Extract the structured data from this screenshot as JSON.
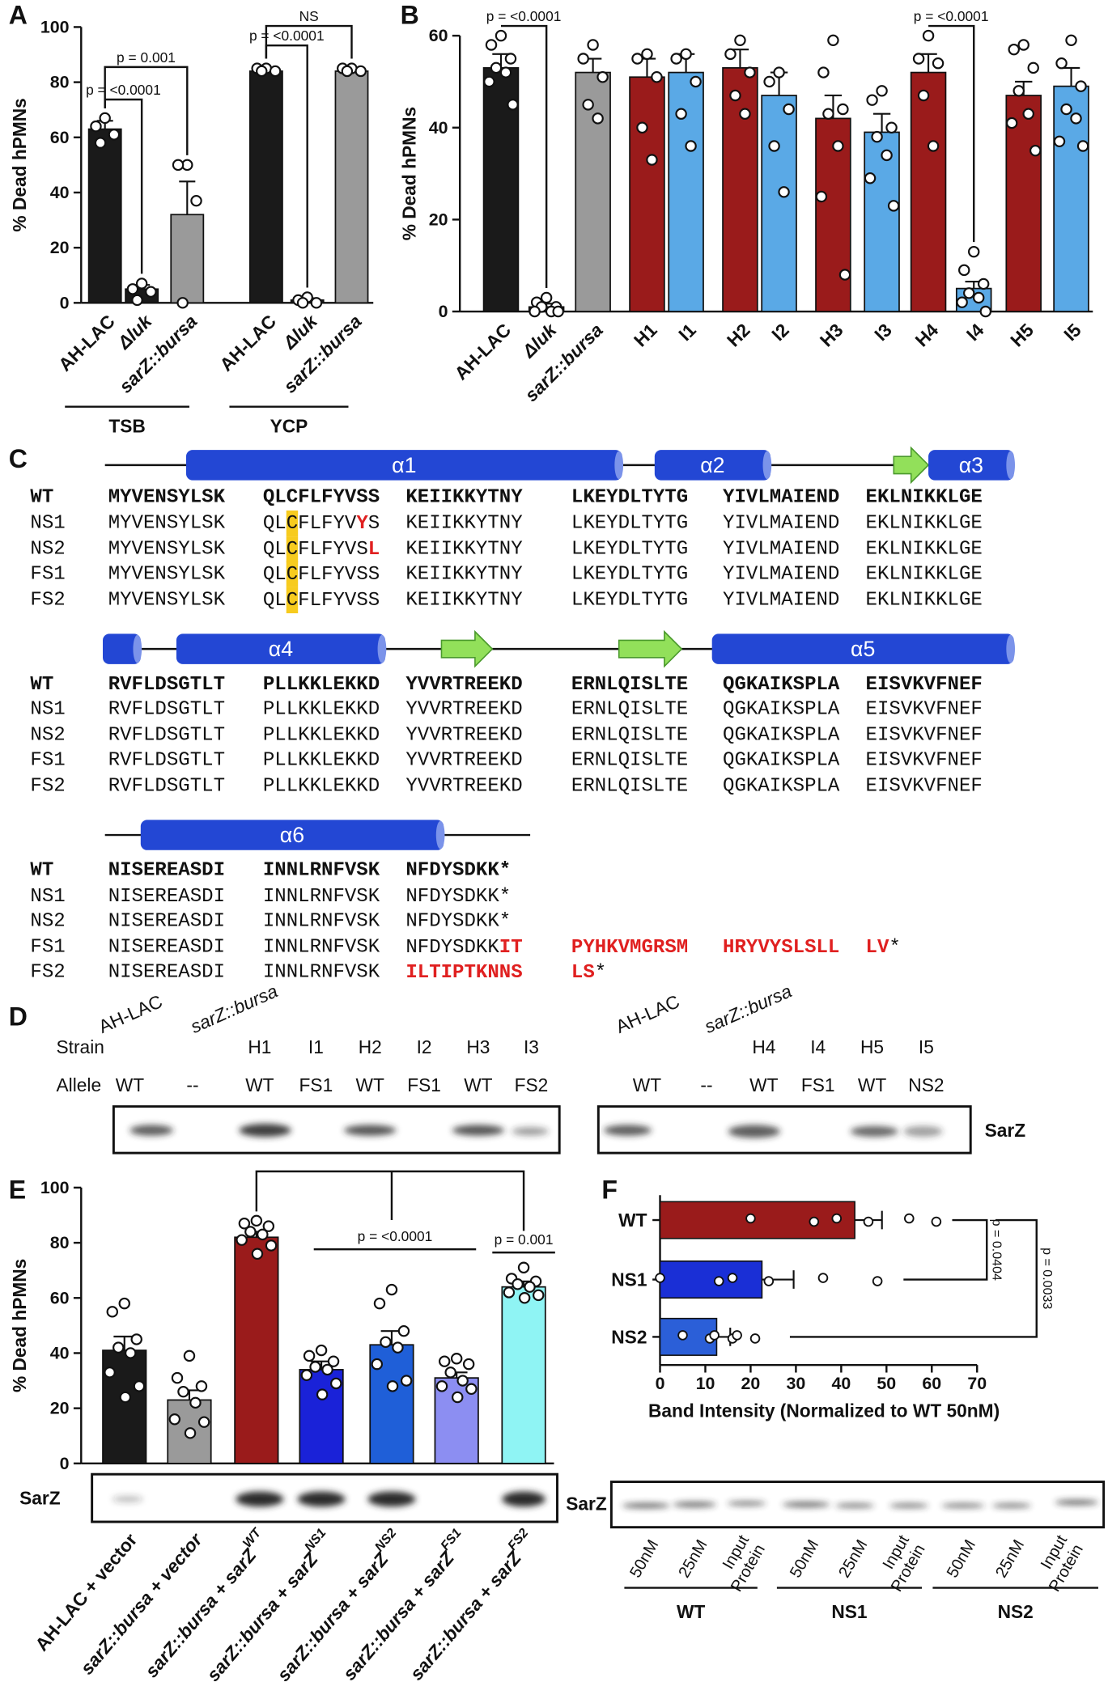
{
  "panel_labels": [
    "A",
    "B",
    "C",
    "D",
    "E",
    "F"
  ],
  "chart_data": [
    {
      "type": "bar",
      "ylabel": "% Dead hPMNs",
      "categories": [
        "AH-LAC",
        "Δluk",
        "sarZ::bursa",
        "AH-LAC",
        "Δluk",
        "sarZ::bursa"
      ],
      "italic": [
        false,
        true,
        true,
        false,
        true,
        true
      ],
      "colors": [
        "#1a1a1a",
        "#1a1a1a",
        "#9a9a9a",
        "#1a1a1a",
        "#1a1a1a",
        "#9a9a9a"
      ],
      "values": [
        63,
        5,
        32,
        84,
        1,
        84
      ],
      "errors": [
        3,
        1.5,
        12,
        1,
        0.7,
        0.7
      ],
      "points": [
        [
          67,
          64,
          61,
          58
        ],
        [
          7,
          5,
          4,
          1
        ],
        [
          50,
          50,
          37,
          0
        ],
        [
          85,
          85,
          84,
          84
        ],
        [
          2,
          1,
          0,
          0
        ],
        [
          85,
          85,
          84,
          84
        ]
      ],
      "ylim": [
        0,
        100
      ],
      "yticks": [
        0,
        20,
        40,
        60,
        80,
        100
      ],
      "groups": [
        "TSB",
        "YCP"
      ],
      "annotations": [
        "p = <0.0001",
        "p = 0.001",
        "p = <0.0001",
        "NS"
      ]
    },
    {
      "type": "bar",
      "ylabel": "% Dead hPMNs",
      "categories": [
        "AH-LAC",
        "Δluk",
        "sarZ::bursa",
        "H1",
        "I1",
        "H2",
        "I2",
        "H3",
        "I3",
        "H4",
        "I4",
        "H5",
        "I5"
      ],
      "italic": [
        false,
        true,
        true,
        false,
        false,
        false,
        false,
        false,
        false,
        false,
        false,
        false,
        false
      ],
      "colors": [
        "#1a1a1a",
        "#1a1a1a",
        "#9a9a9a",
        "#9a1b1b",
        "#5aa9e6",
        "#9a1b1b",
        "#5aa9e6",
        "#9a1b1b",
        "#5aa9e6",
        "#9a1b1b",
        "#5aa9e6",
        "#9a1b1b",
        "#5aa9e6"
      ],
      "values": [
        53,
        1,
        52,
        51,
        52,
        53,
        47,
        42,
        39,
        52,
        5,
        47,
        49
      ],
      "errors": [
        3,
        0.7,
        3,
        4,
        4,
        4,
        5,
        5,
        4,
        4,
        1.5,
        3,
        4
      ],
      "points": [
        [
          60,
          58,
          55,
          53,
          52,
          50,
          45
        ],
        [
          3,
          2,
          1,
          1,
          0,
          0,
          0
        ],
        [
          58,
          55,
          51,
          45,
          42
        ],
        [
          56,
          55,
          51,
          40,
          33
        ],
        [
          56,
          55,
          50,
          43,
          36
        ],
        [
          59,
          56,
          52,
          47,
          43
        ],
        [
          52,
          50,
          44,
          36,
          26
        ],
        [
          59,
          52,
          44,
          43,
          36,
          25,
          8
        ],
        [
          48,
          46,
          40,
          38,
          34,
          29,
          23
        ],
        [
          60,
          55,
          54,
          47,
          36
        ],
        [
          13,
          9,
          6,
          4,
          3,
          2,
          0
        ],
        [
          58,
          57,
          53,
          48,
          43,
          41,
          35
        ],
        [
          59,
          54,
          49,
          44,
          42,
          37,
          36
        ]
      ],
      "ylim": [
        0,
        60
      ],
      "yticks": [
        0,
        20,
        40,
        60
      ],
      "annotations": [
        "p = <0.0001",
        "p = <0.0001"
      ]
    },
    {
      "type": "bar",
      "ylabel": "% Dead hPMNs",
      "categories": [
        "AH-LAC + vector",
        "sarZ::bursa + vector",
        "sarZ::bursa + sarZ",
        "sarZ::bursa + sarZ",
        "sarZ::bursa + sarZ",
        "sarZ::bursa + sarZ",
        "sarZ::bursa + sarZ"
      ],
      "superscripts": [
        null,
        null,
        "WT",
        "NS1",
        "NS2",
        "FS1",
        "FS2"
      ],
      "italic": [
        false,
        true,
        true,
        true,
        true,
        true,
        true
      ],
      "colors": [
        "#1a1a1a",
        "#9a9a9a",
        "#9a1b1b",
        "#1a22d8",
        "#1f5fd8",
        "#8c8ef2",
        "#8ff4f4"
      ],
      "values": [
        41,
        23,
        82,
        34,
        43,
        31,
        64
      ],
      "errors": [
        5,
        3.5,
        2,
        3,
        5,
        2,
        2
      ],
      "points": [
        [
          58,
          55,
          45,
          42,
          40,
          33,
          28,
          24
        ],
        [
          39,
          31,
          28,
          26,
          22,
          16,
          15,
          11
        ],
        [
          88,
          87,
          86,
          84,
          83,
          81,
          79,
          76
        ],
        [
          41,
          39,
          37,
          35,
          34,
          32,
          29,
          25
        ],
        [
          63,
          58,
          48,
          44,
          42,
          36,
          30,
          28
        ],
        [
          38,
          37,
          36,
          33,
          30,
          28,
          27,
          24
        ],
        [
          71,
          67,
          66,
          65,
          64,
          62,
          61,
          60
        ]
      ],
      "ylim": [
        0,
        100
      ],
      "yticks": [
        0,
        20,
        40,
        60,
        80,
        100
      ],
      "annotations": [
        "p = <0.0001",
        "p = 0.001"
      ],
      "blot_label": "SarZ"
    },
    {
      "type": "hbar",
      "xlabel": "Band Intensity (Normalized to WT 50nM)",
      "categories": [
        "WT",
        "NS1",
        "NS2"
      ],
      "colors": [
        "#9a1b1b",
        "#1a2fd6",
        "#2b5fd8"
      ],
      "values": [
        43,
        22.5,
        12.5
      ],
      "errors": [
        6,
        7,
        3
      ],
      "points": [
        [
          20,
          34,
          39,
          46,
          55,
          61
        ],
        [
          0,
          13,
          16,
          24,
          36,
          48
        ],
        [
          5,
          11,
          12,
          16,
          17,
          21
        ]
      ],
      "xlim": [
        0,
        70
      ],
      "xticks": [
        0,
        10,
        20,
        30,
        40,
        50,
        60,
        70
      ],
      "annotations": [
        "p = 0.0404",
        "p = 0.0033"
      ],
      "blot_label": "SarZ",
      "lanes": [
        [
          "50nM"
        ],
        [
          "25nM"
        ],
        [
          "Input",
          "Protein"
        ],
        [
          "50nM"
        ],
        [
          "25nM"
        ],
        [
          "Input",
          "Protein"
        ],
        [
          "50nM"
        ],
        [
          "25nM"
        ],
        [
          "Input",
          "Protein"
        ]
      ],
      "lane_groups": [
        "WT",
        "NS1",
        "NS2"
      ]
    }
  ],
  "alignment": {
    "blocks": [
      {
        "structure": [
          "α1",
          "α2",
          "α3"
        ],
        "rows": [
          {
            "name": "WT",
            "segments": [
              "MYVENSYLSK",
              "QLCFLFYVSS",
              "KEIIKKYTNY",
              "LKEYDLTYTG",
              "YIVLMAIEND",
              "EKLNIKKLGE"
            ]
          },
          {
            "name": "NS1",
            "segments": [
              "MYVENSYLSK",
              [
                "QL",
                {
                  "text": "C",
                  "bg": "#f7cb1e"
                },
                "FLFYV",
                {
                  "text": "Y",
                  "color": "#e02020"
                },
                "S"
              ],
              "KEIIKKYTNY",
              "LKEYDLTYTG",
              "YIVLMAIEND",
              "EKLNIKKLGE"
            ]
          },
          {
            "name": "NS2",
            "segments": [
              "MYVENSYLSK",
              [
                "QL",
                {
                  "text": "C",
                  "bg": "#f7cb1e"
                },
                "FLFYVS",
                {
                  "text": "L",
                  "color": "#e02020"
                }
              ],
              "KEIIKKYTNY",
              "LKEYDLTYTG",
              "YIVLMAIEND",
              "EKLNIKKLGE"
            ]
          },
          {
            "name": "FS1",
            "segments": [
              "MYVENSYLSK",
              [
                "QL",
                {
                  "text": "C",
                  "bg": "#f7cb1e"
                },
                "FLFYVSS"
              ],
              "KEIIKKYTNY",
              "LKEYDLTYTG",
              "YIVLMAIEND",
              "EKLNIKKLGE"
            ]
          },
          {
            "name": "FS2",
            "segments": [
              "MYVENSYLSK",
              [
                "QL",
                {
                  "text": "C",
                  "bg": "#f7cb1e"
                },
                "FLFYVSS"
              ],
              "KEIIKKYTNY",
              "LKEYDLTYTG",
              "YIVLMAIEND",
              "EKLNIKKLGE"
            ]
          }
        ]
      },
      {
        "structure": [
          "α4",
          "α5"
        ],
        "rows": [
          {
            "name": "WT",
            "segments": [
              "RVFLDSGTLT",
              "PLLKKLEKKD",
              "YVVRTREEKD",
              "ERNLQISLTE",
              "QGKAIKSPLA",
              "EISVKVFNEF"
            ]
          },
          {
            "name": "NS1",
            "segments": [
              "RVFLDSGTLT",
              "PLLKKLEKKD",
              "YVVRTREEKD",
              "ERNLQISLTE",
              "QGKAIKSPLA",
              "EISVKVFNEF"
            ]
          },
          {
            "name": "NS2",
            "segments": [
              "RVFLDSGTLT",
              "PLLKKLEKKD",
              "YVVRTREEKD",
              "ERNLQISLTE",
              "QGKAIKSPLA",
              "EISVKVFNEF"
            ]
          },
          {
            "name": "FS1",
            "segments": [
              "RVFLDSGTLT",
              "PLLKKLEKKD",
              "YVVRTREEKD",
              "ERNLQISLTE",
              "QGKAIKSPLA",
              "EISVKVFNEF"
            ]
          },
          {
            "name": "FS2",
            "segments": [
              "RVFLDSGTLT",
              "PLLKKLEKKD",
              "YVVRTREEKD",
              "ERNLQISLTE",
              "QGKAIKSPLA",
              "EISVKVFNEF"
            ]
          }
        ]
      },
      {
        "structure": [
          "α6"
        ],
        "rows": [
          {
            "name": "WT",
            "segments": [
              "NISEREASDI",
              "INNLRNFVSK",
              "NFDYSDKK*"
            ]
          },
          {
            "name": "NS1",
            "segments": [
              "NISEREASDI",
              "INNLRNFVSK",
              "NFDYSDKK*"
            ]
          },
          {
            "name": "NS2",
            "segments": [
              "NISEREASDI",
              "INNLRNFVSK",
              "NFDYSDKK*"
            ]
          },
          {
            "name": "FS1",
            "segments": [
              "NISEREASDI",
              "INNLRNFVSK",
              [
                "NFDYSDKK",
                {
                  "text": "IT",
                  "color": "#e02020"
                }
              ],
              [
                {
                  "text": "PYHKVMGRSM",
                  "color": "#e02020"
                }
              ],
              [
                {
                  "text": "HRYVYSLSLL",
                  "color": "#e02020"
                }
              ],
              [
                {
                  "text": "LV",
                  "color": "#e02020"
                },
                "*"
              ]
            ]
          },
          {
            "name": "FS2",
            "segments": [
              "NISEREASDI",
              "INNLRNFVSK",
              [
                {
                  "text": "ILTIPTKNNS",
                  "color": "#e02020"
                }
              ],
              [
                {
                  "text": "LS",
                  "color": "#e02020"
                },
                "*"
              ]
            ]
          }
        ]
      }
    ]
  },
  "blots": {
    "strain_label": "Strain",
    "allele_label": "Allele",
    "protein": "SarZ",
    "left": {
      "strains": [
        "AH-LAC",
        "sarZ::bursa",
        "H1",
        "I1",
        "H2",
        "I2",
        "H3",
        "I3"
      ],
      "alleles": [
        "WT",
        "--",
        "WT",
        "FS1",
        "WT",
        "FS1",
        "WT",
        "FS2"
      ]
    },
    "right": {
      "strains": [
        "AH-LAC",
        "sarZ::bursa",
        "H4",
        "I4",
        "H5",
        "I5"
      ],
      "alleles": [
        "WT",
        "--",
        "WT",
        "FS1",
        "WT",
        "NS2"
      ]
    }
  }
}
